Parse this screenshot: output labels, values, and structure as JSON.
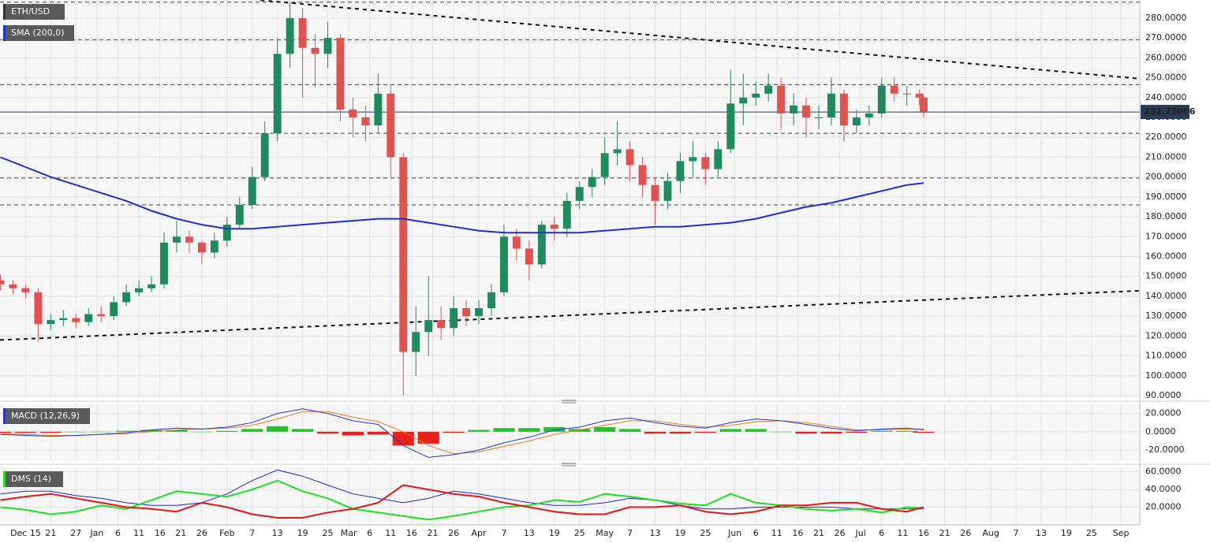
{
  "chart_data": [
    {
      "type": "candlestick",
      "title": "ETH/USD",
      "x": [
        -6,
        -3,
        0,
        3,
        6,
        9,
        12,
        15,
        18,
        21,
        24,
        27,
        30,
        33,
        36,
        39,
        42,
        45,
        48,
        51,
        54,
        57,
        60,
        63,
        66,
        69,
        72,
        75,
        78,
        81,
        84,
        87,
        90,
        93,
        96,
        99,
        102,
        105,
        108,
        111,
        114,
        117,
        120,
        123,
        126,
        129,
        132,
        135,
        138,
        141,
        144,
        147,
        150,
        153,
        156,
        159,
        162,
        165,
        168,
        171,
        174,
        177,
        180,
        183,
        186,
        189,
        192,
        195,
        198,
        201,
        204,
        207,
        210,
        213,
        214
      ],
      "open": [
        148,
        146,
        144,
        142,
        126,
        128,
        129,
        127,
        131,
        130,
        137,
        142,
        144,
        146,
        167,
        170,
        167,
        162,
        168,
        176,
        186,
        200,
        222,
        262,
        280,
        265,
        262,
        270,
        234,
        230,
        226,
        242,
        210,
        112,
        122,
        128,
        124,
        134,
        130,
        134,
        142,
        170,
        164,
        156,
        176,
        174,
        188,
        195,
        200,
        212,
        214,
        206,
        196,
        188,
        198,
        208,
        210,
        204,
        214,
        237,
        240,
        242,
        246,
        232,
        236,
        230,
        230,
        242,
        226,
        230,
        232,
        246,
        242,
        242,
        240
      ],
      "high": [
        151,
        148,
        146,
        144,
        131,
        133,
        131,
        134,
        135,
        140,
        146,
        148,
        150,
        172,
        178,
        173,
        168,
        172,
        180,
        190,
        205,
        228,
        270,
        288,
        285,
        272,
        278,
        272,
        240,
        236,
        252,
        246,
        212,
        135,
        150,
        135,
        140,
        138,
        138,
        146,
        176,
        174,
        168,
        178,
        180,
        192,
        198,
        204,
        220,
        228,
        218,
        210,
        200,
        202,
        212,
        218,
        212,
        218,
        254,
        252,
        248,
        252,
        250,
        242,
        240,
        236,
        250,
        244,
        234,
        236,
        250,
        250,
        246,
        244,
        241
      ],
      "low": [
        143,
        141,
        139,
        117,
        123,
        125,
        124,
        125,
        127,
        128,
        135,
        140,
        142,
        144,
        162,
        162,
        156,
        159,
        165,
        174,
        184,
        198,
        218,
        255,
        240,
        245,
        255,
        228,
        220,
        218,
        222,
        200,
        90,
        100,
        110,
        118,
        120,
        125,
        126,
        130,
        140,
        158,
        148,
        154,
        168,
        170,
        184,
        190,
        196,
        206,
        198,
        190,
        176,
        184,
        192,
        200,
        196,
        200,
        212,
        226,
        236,
        238,
        224,
        226,
        220,
        224,
        226,
        218,
        222,
        226,
        230,
        238,
        236,
        236,
        230
      ],
      "close": [
        146,
        144,
        142,
        126,
        128,
        129,
        127,
        131,
        130,
        137,
        142,
        144,
        146,
        167,
        170,
        167,
        162,
        168,
        176,
        186,
        200,
        222,
        262,
        280,
        265,
        262,
        270,
        234,
        230,
        226,
        242,
        210,
        112,
        122,
        128,
        124,
        134,
        130,
        134,
        142,
        170,
        164,
        156,
        176,
        174,
        188,
        195,
        200,
        212,
        214,
        206,
        196,
        188,
        198,
        208,
        210,
        204,
        214,
        237,
        240,
        242,
        246,
        232,
        236,
        230,
        230,
        242,
        226,
        230,
        232,
        246,
        242,
        242,
        240,
        233
      ],
      "up_color": "#1f8a5c",
      "down_color": "#e0524f",
      "sma": {
        "name": "SMA (200,0)",
        "color": "#1b2fd8",
        "x": [
          -6,
          0,
          6,
          12,
          18,
          24,
          30,
          36,
          42,
          48,
          54,
          60,
          66,
          72,
          78,
          84,
          90,
          96,
          102,
          108,
          114,
          120,
          126,
          132,
          138,
          144,
          150,
          156,
          162,
          168,
          174,
          180,
          186,
          192,
          198,
          204,
          210,
          214
        ],
        "values": [
          210,
          205,
          200,
          196,
          192,
          188,
          183,
          179,
          176,
          174,
          174,
          175,
          176,
          177,
          178,
          179,
          179,
          177,
          175,
          173,
          172,
          172,
          172,
          172,
          173,
          174,
          175,
          175,
          176,
          177,
          179,
          182,
          185,
          187,
          190,
          193,
          196,
          197
        ]
      },
      "levels": [
        288,
        269,
        246.5,
        222,
        199.5,
        186
      ],
      "current_price": 232.75006,
      "trendlines": [
        {
          "x": [
            56,
            265.5
          ],
          "values": [
            289,
            249.5
          ]
        },
        {
          "x": [
            -6.1,
            265.5
          ],
          "values": [
            118,
            142.8
          ]
        }
      ],
      "xlim": [
        -6.1,
        265.5
      ],
      "xticks": [
        {
          "value": 0,
          "label": "Dec 15"
        },
        {
          "value": 6,
          "label": "21"
        },
        {
          "value": 12,
          "label": "27"
        },
        {
          "value": 17,
          "label": "Jan"
        },
        {
          "value": 22,
          "label": "6"
        },
        {
          "value": 27,
          "label": "11"
        },
        {
          "value": 32,
          "label": "16"
        },
        {
          "value": 37,
          "label": "21"
        },
        {
          "value": 42,
          "label": "26"
        },
        {
          "value": 48,
          "label": "Feb"
        },
        {
          "value": 54,
          "label": "7"
        },
        {
          "value": 60,
          "label": "13"
        },
        {
          "value": 66,
          "label": "19"
        },
        {
          "value": 72,
          "label": "25"
        },
        {
          "value": 77,
          "label": "Mar"
        },
        {
          "value": 82,
          "label": "6"
        },
        {
          "value": 87,
          "label": "11"
        },
        {
          "value": 92,
          "label": "16"
        },
        {
          "value": 97,
          "label": "21"
        },
        {
          "value": 102,
          "label": "26"
        },
        {
          "value": 108,
          "label": "Apr"
        },
        {
          "value": 114,
          "label": "7"
        },
        {
          "value": 120,
          "label": "13"
        },
        {
          "value": 126,
          "label": "19"
        },
        {
          "value": 132,
          "label": "25"
        },
        {
          "value": 138,
          "label": "May"
        },
        {
          "value": 144,
          "label": "7"
        },
        {
          "value": 150,
          "label": "13"
        },
        {
          "value": 156,
          "label": "19"
        },
        {
          "value": 162,
          "label": "25"
        },
        {
          "value": 169,
          "label": "Jun"
        },
        {
          "value": 174,
          "label": "6"
        },
        {
          "value": 179,
          "label": "11"
        },
        {
          "value": 184,
          "label": "16"
        },
        {
          "value": 189,
          "label": "21"
        },
        {
          "value": 194,
          "label": "26"
        },
        {
          "value": 199,
          "label": "Jul"
        },
        {
          "value": 204,
          "label": "6"
        },
        {
          "value": 209,
          "label": "11"
        },
        {
          "value": 214,
          "label": "16"
        },
        {
          "value": 219,
          "label": "21"
        },
        {
          "value": 224,
          "label": "26"
        },
        {
          "value": 230,
          "label": "Aug"
        },
        {
          "value": 236,
          "label": "7"
        },
        {
          "value": 242,
          "label": "13"
        },
        {
          "value": 248,
          "label": "19"
        },
        {
          "value": 254,
          "label": "25"
        },
        {
          "value": 261,
          "label": "Sep"
        }
      ],
      "ylim": [
        88.8,
        289.1
      ],
      "yticks": [
        {
          "value": 90,
          "label": "90.0000"
        },
        {
          "value": 100,
          "label": "100.0000"
        },
        {
          "value": 110,
          "label": "110.0000"
        },
        {
          "value": 120,
          "label": "120.0000"
        },
        {
          "value": 130,
          "label": "130.0000"
        },
        {
          "value": 140,
          "label": "140.0000"
        },
        {
          "value": 150,
          "label": "150.0000"
        },
        {
          "value": 160,
          "label": "160.0000"
        },
        {
          "value": 170,
          "label": "170.0000"
        },
        {
          "value": 180,
          "label": "180.0000"
        },
        {
          "value": 190,
          "label": "190.0000"
        },
        {
          "value": 200,
          "label": "200.0000"
        },
        {
          "value": 210,
          "label": "210.0000"
        },
        {
          "value": 220,
          "label": "220.0000"
        },
        {
          "value": 230,
          "label": "230.0000"
        },
        {
          "value": 240,
          "label": "240.0000"
        },
        {
          "value": 250,
          "label": "250.0000"
        },
        {
          "value": 260,
          "label": "260.0000"
        },
        {
          "value": 270,
          "label": "270.0000"
        },
        {
          "value": 280,
          "label": "280.0000"
        }
      ],
      "grid": true
    },
    {
      "type": "macd",
      "title": "MACD (12,26,9)",
      "x": [
        -6,
        0,
        6,
        12,
        18,
        24,
        30,
        36,
        42,
        48,
        54,
        60,
        66,
        72,
        78,
        84,
        90,
        96,
        102,
        108,
        114,
        120,
        126,
        132,
        138,
        144,
        150,
        156,
        162,
        168,
        174,
        180,
        186,
        192,
        198,
        204,
        210,
        214
      ],
      "macd": {
        "color": "#2336e0",
        "values": [
          -3,
          -4,
          -5,
          -4,
          -3,
          -1,
          2,
          4,
          3,
          5,
          10,
          20,
          25,
          20,
          12,
          8,
          -15,
          -28,
          -25,
          -20,
          -12,
          -6,
          2,
          5,
          12,
          15,
          10,
          6,
          4,
          10,
          14,
          12,
          8,
          4,
          1,
          3,
          4,
          2
        ]
      },
      "signal": {
        "color": "#f07a1a",
        "values": [
          -2,
          -3,
          -4,
          -4,
          -3,
          -2,
          0,
          2,
          3,
          4,
          7,
          14,
          22,
          22,
          16,
          11,
          0,
          -15,
          -24,
          -22,
          -16,
          -10,
          -3,
          2,
          7,
          12,
          12,
          8,
          5,
          7,
          11,
          12,
          10,
          6,
          2,
          2,
          3,
          3
        ]
      },
      "histogram": {
        "up_color": "#22c32a",
        "down_color": "#e8211c",
        "values": [
          -1,
          -1,
          -1,
          0,
          0,
          1,
          2,
          2,
          0,
          1,
          3,
          6,
          3,
          -2,
          -4,
          -3,
          -15,
          -13,
          -1,
          2,
          4,
          4,
          5,
          3,
          5,
          3,
          -2,
          -2,
          -1,
          3,
          3,
          0,
          -2,
          -2,
          -1,
          1,
          1,
          -1
        ]
      },
      "ylim": [
        -32,
        30
      ],
      "yticks": [
        {
          "value": -20,
          "label": "-20.0000"
        },
        {
          "value": 0,
          "label": "0.0000"
        },
        {
          "value": 20,
          "label": "20.0000"
        }
      ]
    },
    {
      "type": "line",
      "title": "DMS (14)",
      "x": [
        -6,
        0,
        6,
        12,
        18,
        24,
        30,
        36,
        42,
        48,
        54,
        60,
        66,
        72,
        78,
        84,
        90,
        96,
        102,
        108,
        114,
        120,
        126,
        132,
        138,
        144,
        150,
        156,
        162,
        168,
        174,
        180,
        186,
        192,
        198,
        204,
        210,
        214
      ],
      "series": [
        {
          "color": "#2323d8",
          "width": 1,
          "values": [
            35,
            38,
            38,
            33,
            30,
            25,
            22,
            22,
            25,
            35,
            50,
            62,
            55,
            45,
            35,
            30,
            25,
            30,
            38,
            35,
            30,
            25,
            22,
            22,
            25,
            30,
            28,
            22,
            18,
            18,
            20,
            20,
            20,
            20,
            18,
            18,
            18,
            18
          ]
        },
        {
          "color": "#1fe01f",
          "width": 2,
          "values": [
            20,
            17,
            12,
            15,
            22,
            18,
            28,
            38,
            35,
            32,
            40,
            50,
            38,
            30,
            18,
            14,
            10,
            6,
            10,
            15,
            20,
            22,
            28,
            26,
            35,
            32,
            28,
            24,
            22,
            35,
            25,
            22,
            18,
            16,
            18,
            14,
            20,
            19
          ]
        },
        {
          "color": "#e01818",
          "width": 2,
          "values": [
            28,
            32,
            35,
            30,
            25,
            20,
            18,
            15,
            25,
            20,
            12,
            8,
            8,
            14,
            18,
            25,
            45,
            40,
            35,
            32,
            25,
            20,
            15,
            12,
            12,
            20,
            20,
            22,
            15,
            12,
            15,
            22,
            22,
            25,
            25,
            18,
            15,
            20
          ]
        }
      ],
      "ylim": [
        0,
        65
      ],
      "yticks": [
        {
          "value": 20,
          "label": "20.0000"
        },
        {
          "value": 40,
          "label": "40.0000"
        },
        {
          "value": 60,
          "label": "60.0000"
        }
      ]
    }
  ]
}
